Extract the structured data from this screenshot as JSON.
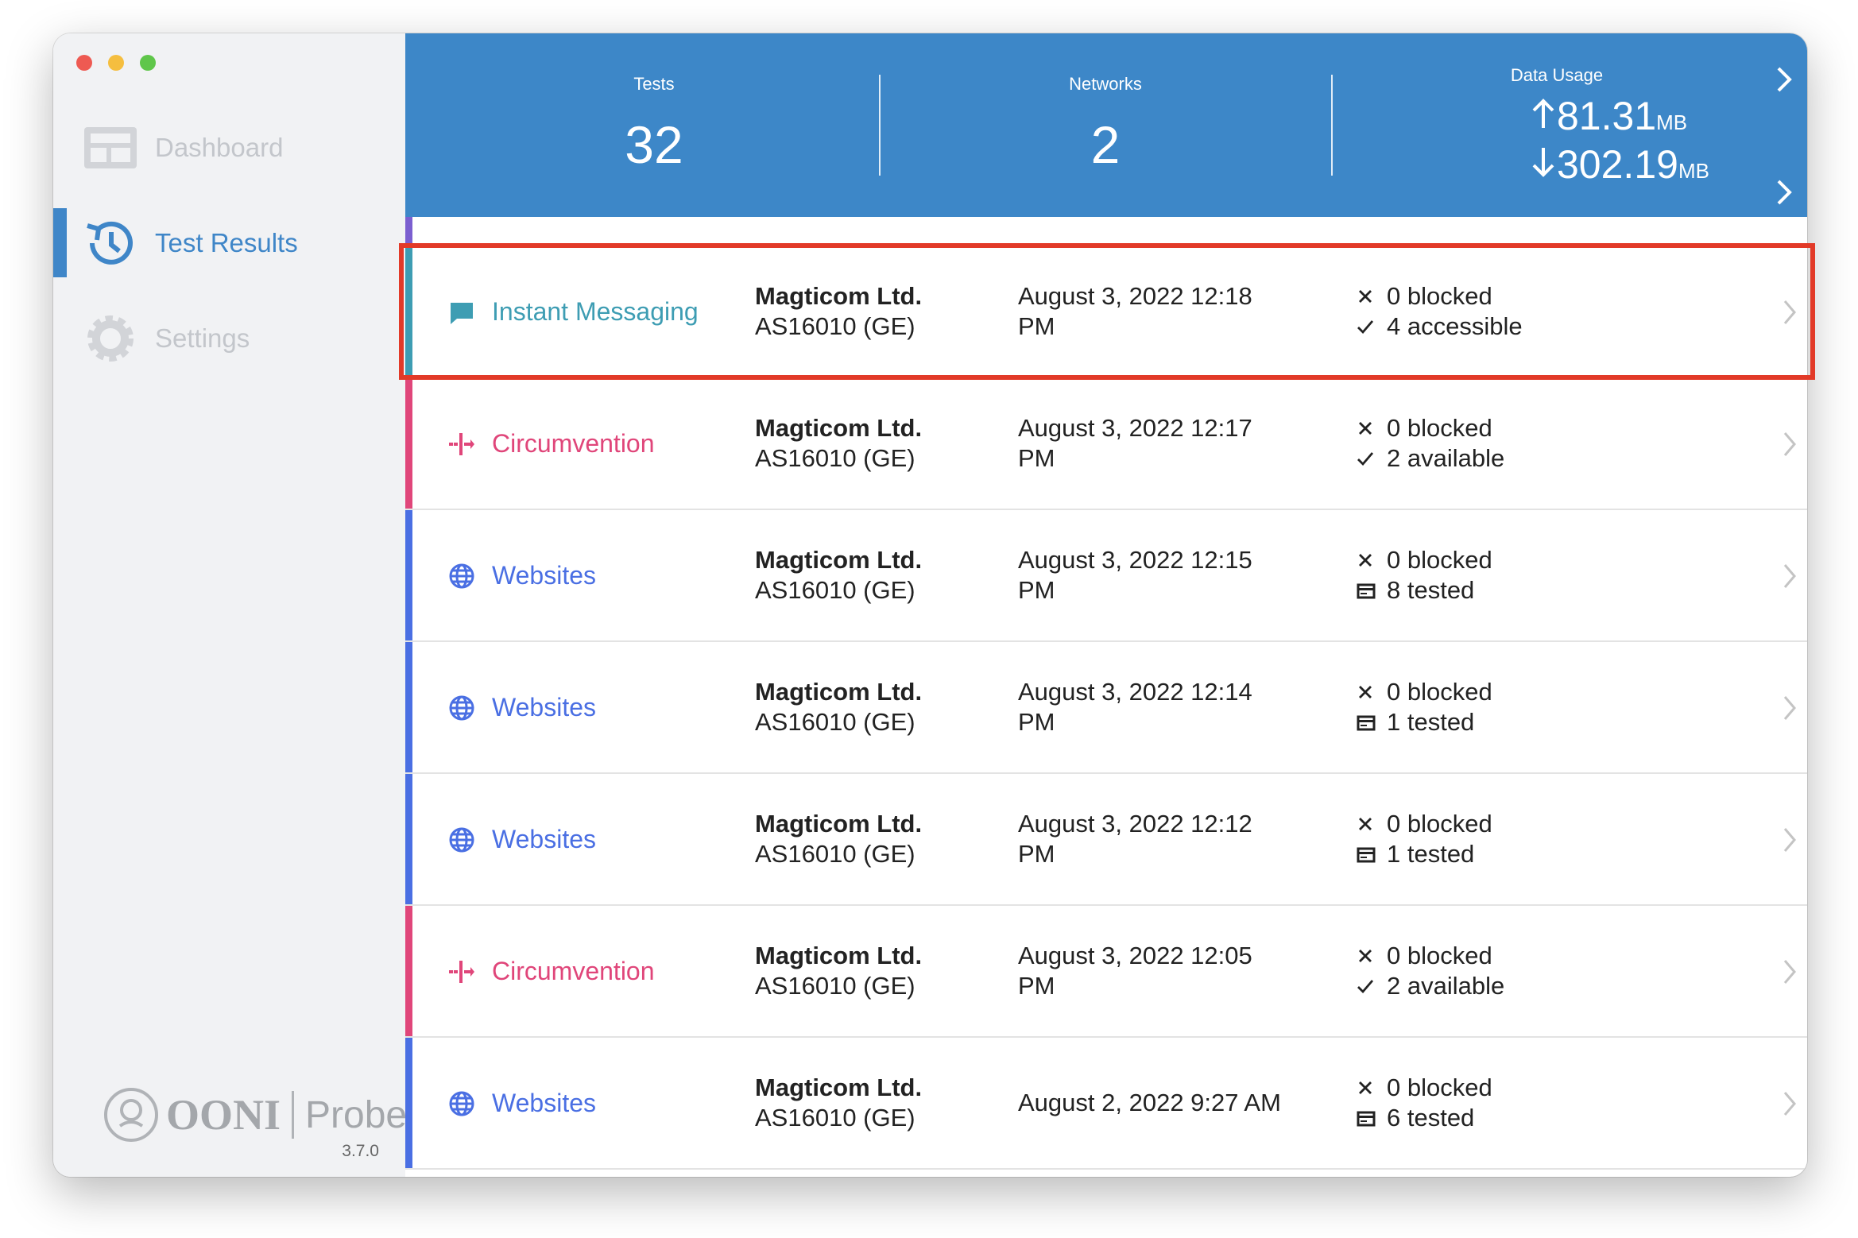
{
  "sidebar": {
    "nav": [
      {
        "label": "Dashboard",
        "icon": "dashboard",
        "active": false
      },
      {
        "label": "Test Results",
        "icon": "history",
        "active": true
      },
      {
        "label": "Settings",
        "icon": "gear",
        "active": false
      }
    ],
    "logo": {
      "name": "OONI",
      "product": "Probe"
    },
    "version": "3.7.0"
  },
  "header": {
    "tests": {
      "label": "Tests",
      "value": "32"
    },
    "networks": {
      "label": "Networks",
      "value": "2"
    },
    "data_usage": {
      "label": "Data Usage",
      "upload": "81.31",
      "upload_unit": "MB",
      "download": "302.19",
      "download_unit": "MB"
    }
  },
  "rows": [
    {
      "test": "Instant Messaging",
      "icon": "chat",
      "color": "#3e9db3",
      "network": "Magticom Ltd.",
      "asn": "AS16010 (GE)",
      "date": "August 3, 2022 12:18 PM",
      "blocked": "0 blocked",
      "result": "4 accessible",
      "result_icon": "check"
    },
    {
      "test": "Circumvention",
      "icon": "circumvention",
      "color": "#e0467a",
      "network": "Magticom Ltd.",
      "asn": "AS16010 (GE)",
      "date": "August 3, 2022 12:17 PM",
      "blocked": "0 blocked",
      "result": "2 available",
      "result_icon": "check"
    },
    {
      "test": "Websites",
      "icon": "globe",
      "color": "#4a6fe3",
      "network": "Magticom Ltd.",
      "asn": "AS16010 (GE)",
      "date": "August 3, 2022 12:15 PM",
      "blocked": "0 blocked",
      "result": "8 tested",
      "result_icon": "card"
    },
    {
      "test": "Websites",
      "icon": "globe",
      "color": "#4a6fe3",
      "network": "Magticom Ltd.",
      "asn": "AS16010 (GE)",
      "date": "August 3, 2022 12:14 PM",
      "blocked": "0 blocked",
      "result": "1 tested",
      "result_icon": "card"
    },
    {
      "test": "Websites",
      "icon": "globe",
      "color": "#4a6fe3",
      "network": "Magticom Ltd.",
      "asn": "AS16010 (GE)",
      "date": "August 3, 2022 12:12 PM",
      "blocked": "0 blocked",
      "result": "1 tested",
      "result_icon": "card"
    },
    {
      "test": "Circumvention",
      "icon": "circumvention",
      "color": "#e0467a",
      "network": "Magticom Ltd.",
      "asn": "AS16010 (GE)",
      "date": "August 3, 2022 12:05 PM",
      "blocked": "0 blocked",
      "result": "2 available",
      "result_icon": "check"
    },
    {
      "test": "Websites",
      "icon": "globe",
      "color": "#4a6fe3",
      "network": "Magticom Ltd.",
      "asn": "AS16010 (GE)",
      "date": "August 2, 2022 9:27 AM",
      "blocked": "0 blocked",
      "result": "6 tested",
      "result_icon": "card"
    }
  ],
  "highlight_row": 0
}
